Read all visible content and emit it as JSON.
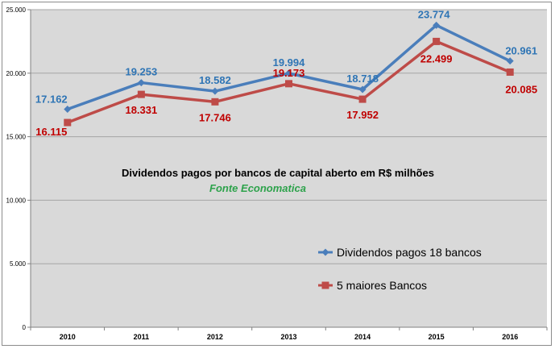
{
  "chart_data": {
    "type": "line",
    "categories": [
      "2010",
      "2011",
      "2012",
      "2013",
      "2014",
      "2015",
      "2016"
    ],
    "series": [
      {
        "name": "Dividendos pagos 18 bancos",
        "values": [
          17162,
          19253,
          18582,
          19994,
          18718,
          23774,
          20961
        ],
        "labels": [
          "17.162",
          "19.253",
          "18.582",
          "19.994",
          "18.718",
          "23.774",
          "20.961"
        ],
        "color": "#4a7ebb"
      },
      {
        "name": "5 maiores Bancos",
        "values": [
          16115,
          18331,
          17746,
          19173,
          17952,
          22499,
          20085
        ],
        "labels": [
          "16.115",
          "18.331",
          "17.746",
          "19.173",
          "17.952",
          "22.499",
          "20.085"
        ],
        "color": "#be4b48"
      }
    ],
    "title": "Dividendos pagos por bancos de capital aberto em R$ milhões",
    "subtitle": "Fonte Economatica",
    "ylim": [
      0,
      25000
    ],
    "yticks": [
      0,
      5000,
      10000,
      15000,
      20000,
      25000
    ],
    "ytick_labels": [
      "0",
      "5.000",
      "10.000",
      "15.000",
      "20.000",
      "25.000"
    ],
    "grid": true,
    "legend_position": "bottom-right"
  }
}
